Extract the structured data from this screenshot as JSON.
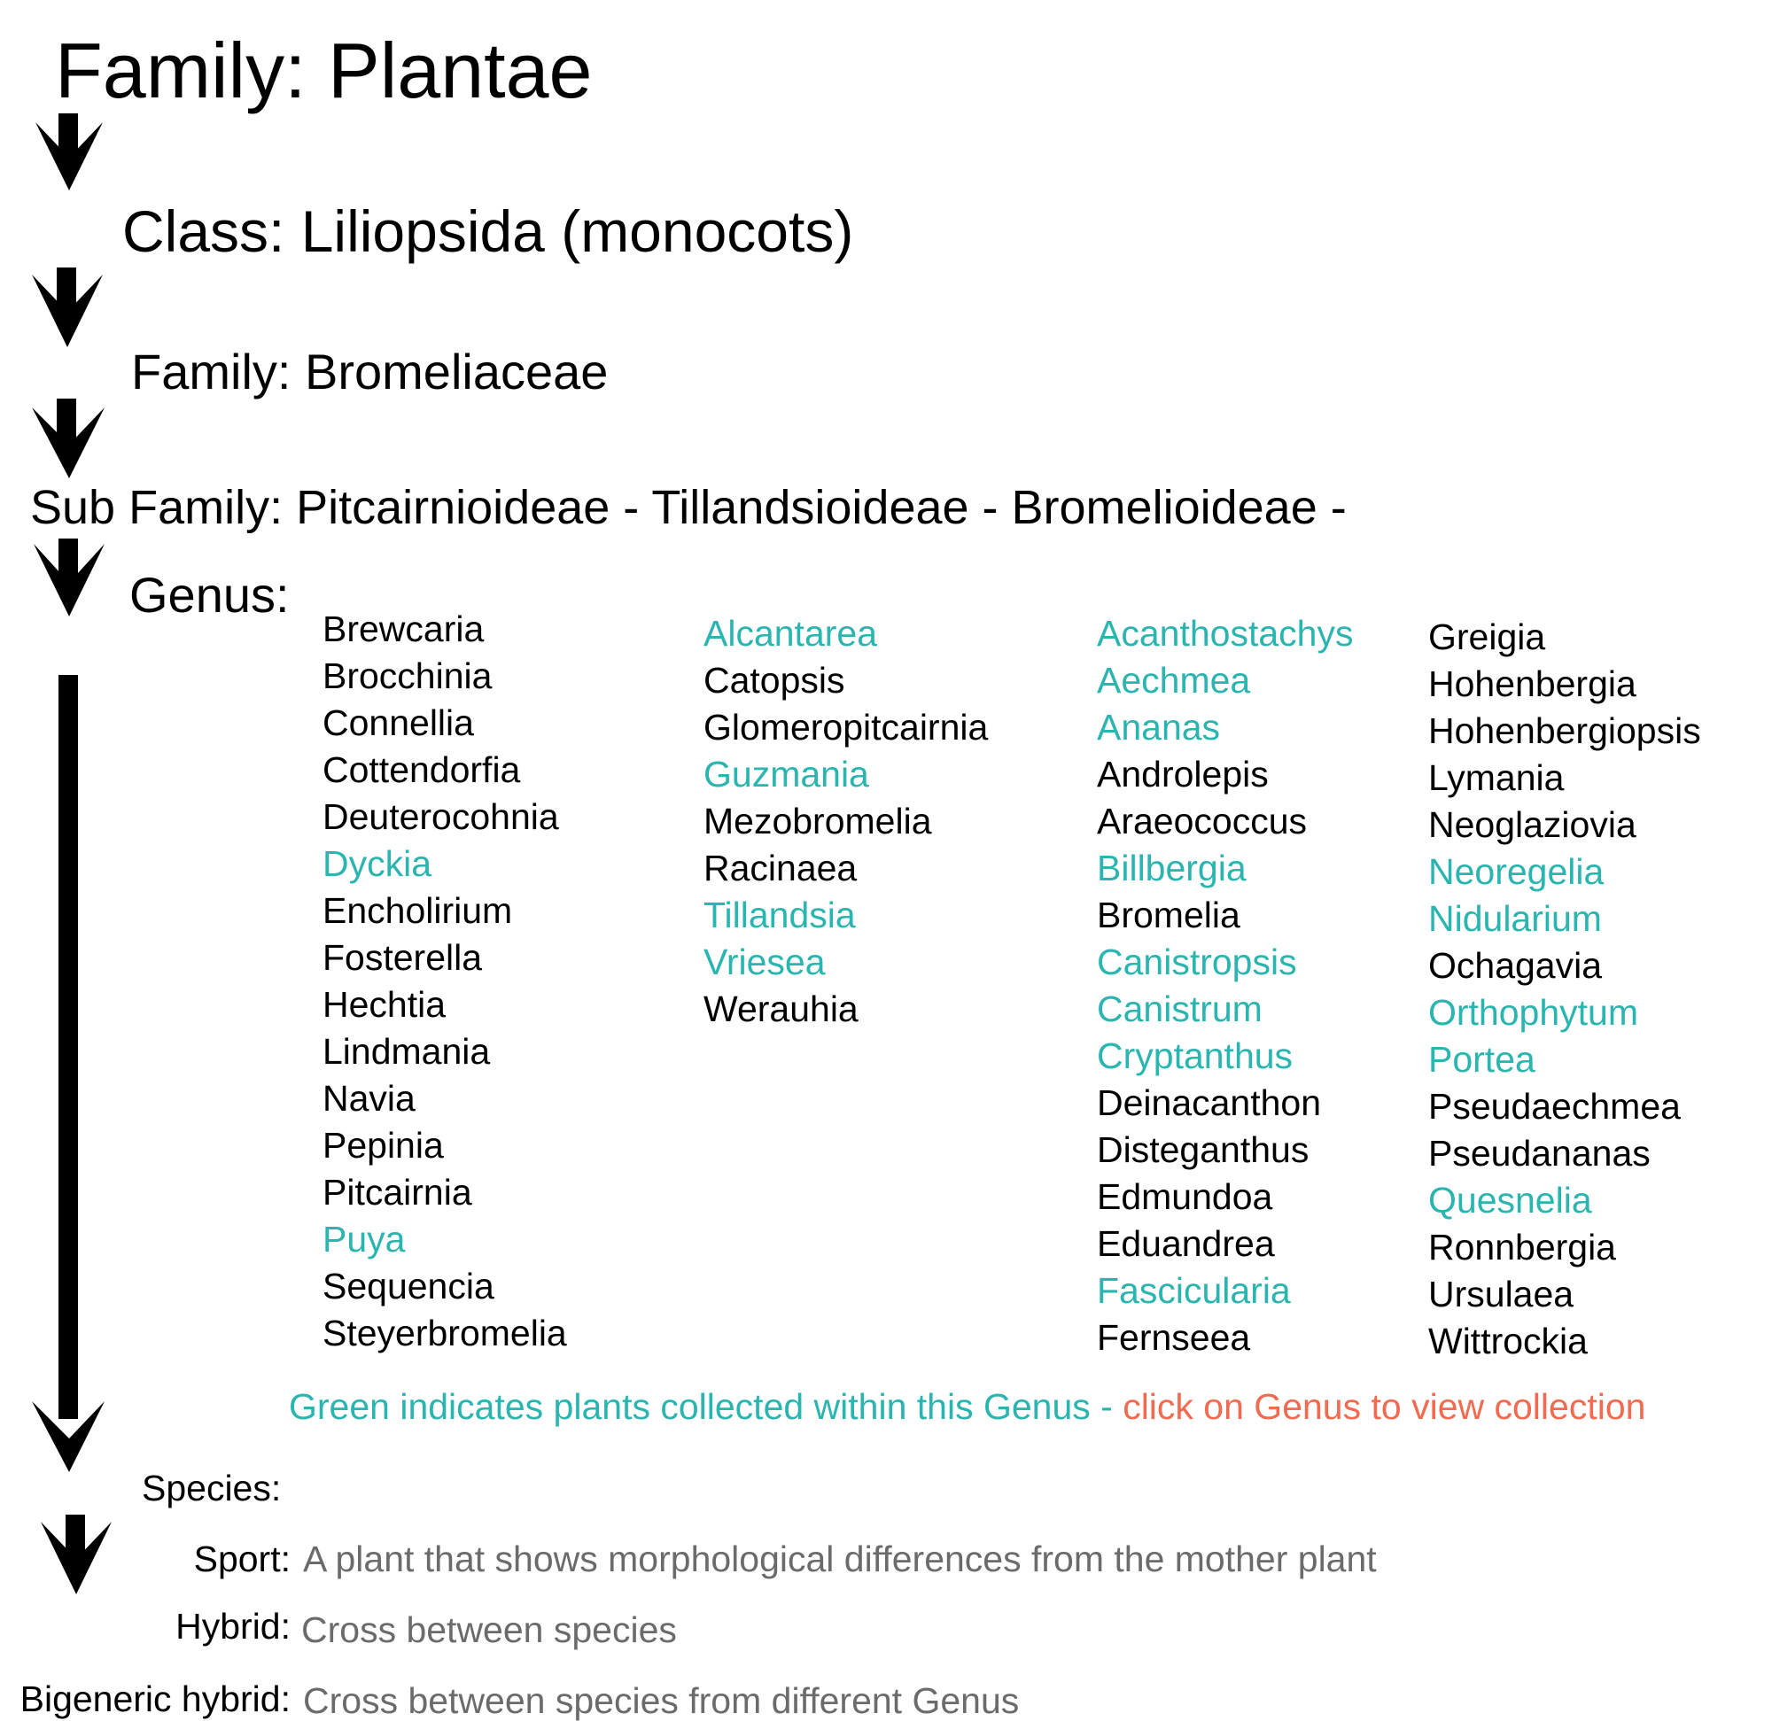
{
  "ranks": {
    "kingdom": "Family: Plantae",
    "class": "Class: Liliopsida (monocots)",
    "family": "Family: Bromeliaceae",
    "subfamily": "Sub Family: Pitcairnioideae - Tillandsioideae - Bromelioideae -",
    "genus": "Genus:"
  },
  "genera": {
    "columns": [
      [
        {
          "name": "Brewcaria",
          "collected": false
        },
        {
          "name": "Brocchinia",
          "collected": false
        },
        {
          "name": "Connellia",
          "collected": false
        },
        {
          "name": "Cottendorfia",
          "collected": false
        },
        {
          "name": "Deuterocohnia",
          "collected": false
        },
        {
          "name": "Dyckia",
          "collected": true
        },
        {
          "name": "Encholirium",
          "collected": false
        },
        {
          "name": "Fosterella",
          "collected": false
        },
        {
          "name": "Hechtia",
          "collected": false
        },
        {
          "name": "Lindmania",
          "collected": false
        },
        {
          "name": "Navia",
          "collected": false
        },
        {
          "name": "Pepinia",
          "collected": false
        },
        {
          "name": "Pitcairnia",
          "collected": false
        },
        {
          "name": "Puya",
          "collected": true
        },
        {
          "name": "Sequencia",
          "collected": false
        },
        {
          "name": "Steyerbromelia",
          "collected": false
        }
      ],
      [
        {
          "name": "Alcantarea",
          "collected": true
        },
        {
          "name": "Catopsis",
          "collected": false
        },
        {
          "name": "Glomeropitcairnia",
          "collected": false
        },
        {
          "name": "Guzmania",
          "collected": true
        },
        {
          "name": "Mezobromelia",
          "collected": false
        },
        {
          "name": "Racinaea",
          "collected": false
        },
        {
          "name": "Tillandsia",
          "collected": true
        },
        {
          "name": "Vriesea",
          "collected": true
        },
        {
          "name": "Werauhia",
          "collected": false
        }
      ],
      [
        {
          "name": "Acanthostachys",
          "collected": true
        },
        {
          "name": "Aechmea",
          "collected": true
        },
        {
          "name": "Ananas",
          "collected": true
        },
        {
          "name": "Androlepis",
          "collected": false
        },
        {
          "name": "Araeococcus",
          "collected": false
        },
        {
          "name": "Billbergia",
          "collected": true
        },
        {
          "name": "Bromelia",
          "collected": false
        },
        {
          "name": "Canistropsis",
          "collected": true
        },
        {
          "name": "Canistrum",
          "collected": true
        },
        {
          "name": "Cryptanthus",
          "collected": true
        },
        {
          "name": "Deinacanthon",
          "collected": false
        },
        {
          "name": "Disteganthus",
          "collected": false
        },
        {
          "name": "Edmundoa",
          "collected": false
        },
        {
          "name": "Eduandrea",
          "collected": false
        },
        {
          "name": "Fascicularia",
          "collected": true
        },
        {
          "name": "Fernseea",
          "collected": false
        }
      ],
      [
        {
          "name": "Greigia",
          "collected": false
        },
        {
          "name": "Hohenbergia",
          "collected": false
        },
        {
          "name": "Hohenbergiopsis",
          "collected": false
        },
        {
          "name": "Lymania",
          "collected": false
        },
        {
          "name": "Neoglaziovia",
          "collected": false
        },
        {
          "name": "Neoregelia",
          "collected": true
        },
        {
          "name": "Nidularium",
          "collected": true
        },
        {
          "name": "Ochagavia",
          "collected": false
        },
        {
          "name": "Orthophytum",
          "collected": true
        },
        {
          "name": "Portea",
          "collected": true
        },
        {
          "name": "Pseudaechmea",
          "collected": false
        },
        {
          "name": "Pseudananas",
          "collected": false
        },
        {
          "name": "Quesnelia",
          "collected": true
        },
        {
          "name": "Ronnbergia",
          "collected": false
        },
        {
          "name": "Ursulaea",
          "collected": false
        },
        {
          "name": "Wittrockia",
          "collected": false
        }
      ]
    ]
  },
  "legend": {
    "collected_note": "Green indicates plants collected within this Genus - ",
    "click_note": "click on Genus to view collection",
    "collected_color": "#2ab5b0",
    "click_color": "#f26b50"
  },
  "lower_ranks": {
    "species_label": "Species:",
    "sport_label": "Sport:",
    "sport_desc": "A plant that shows morphological differences from the mother plant",
    "hybrid_label": "Hybrid:",
    "hybrid_desc": "Cross between species",
    "bigeneric_label": "Bigeneric hybrid:",
    "bigeneric_desc": "Cross between species from different Genus"
  },
  "icons": [
    "arrow-down-icon"
  ]
}
